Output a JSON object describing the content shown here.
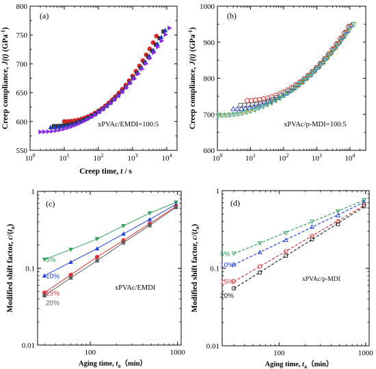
{
  "chart_data": [
    {
      "type": "scatter",
      "panel_label": "(a)",
      "xlabel_pre": "Creep time, ",
      "xlabel_var": "t",
      "xlabel_post": " / s",
      "ylabel_pre": "Creep compliance, ",
      "ylabel_var": "J(t)",
      "ylabel_post": " (GPa",
      "ylabel_exp": "-1",
      "ylabel_close": ")",
      "annotation": "xPVAc/EMDI=100:5",
      "x_scale": "log",
      "xlim": [
        1,
        20000
      ],
      "ylim": [
        550,
        800
      ],
      "y_ticks": [
        "550",
        "600",
        "650",
        "700",
        "750",
        "800"
      ],
      "x_ticks": [
        {
          "base": "10",
          "exp": "0"
        },
        {
          "base": "10",
          "exp": "1"
        },
        {
          "base": "10",
          "exp": "2"
        },
        {
          "base": "10",
          "exp": "3"
        },
        {
          "base": "10",
          "exp": "4"
        }
      ],
      "series": [
        {
          "marker": "circle",
          "color": "#d62728",
          "fill": true,
          "x_range": [
            10,
            5000
          ],
          "y_range": [
            600,
            748
          ],
          "n": 28
        },
        {
          "marker": "square",
          "color": "#333333",
          "fill": true,
          "x_range": [
            5,
            8000
          ],
          "y_range": [
            592,
            756
          ],
          "n": 30
        },
        {
          "marker": "triangle-up",
          "color": "#1f3fbf",
          "fill": true,
          "x_range": [
            4,
            9000
          ],
          "y_range": [
            590,
            758
          ],
          "n": 30
        },
        {
          "marker": "triangle-right",
          "color": "#8a2be2",
          "fill": true,
          "x_range": [
            2,
            12000
          ],
          "y_range": [
            582,
            762
          ],
          "n": 34
        }
      ]
    },
    {
      "type": "scatter",
      "panel_label": "(b)",
      "ylabel_pre": "Creep compliance, ",
      "ylabel_var": "J(t)",
      "ylabel_post": " (GPa",
      "ylabel_exp": "-1",
      "ylabel_close": ")",
      "annotation": "xPVAc/p-MDI=100:5",
      "x_scale": "log",
      "xlim": [
        1,
        30000
      ],
      "ylim": [
        600,
        1000
      ],
      "y_ticks": [
        "600",
        "700",
        "800",
        "900",
        "1000"
      ],
      "x_ticks": [
        {
          "base": "10",
          "exp": "0"
        },
        {
          "base": "10",
          "exp": "1"
        },
        {
          "base": "10",
          "exp": "2"
        },
        {
          "base": "10",
          "exp": "3"
        },
        {
          "base": "10",
          "exp": "4"
        }
      ],
      "series": [
        {
          "marker": "circle",
          "color": "#d62728",
          "fill": false,
          "x_range": [
            8,
            9000
          ],
          "y_range": [
            738,
            942
          ],
          "n": 26
        },
        {
          "marker": "square",
          "color": "#555555",
          "fill": false,
          "x_range": [
            5,
            10000
          ],
          "y_range": [
            725,
            945
          ],
          "n": 28
        },
        {
          "marker": "triangle-up",
          "color": "#1f3fbf",
          "fill": false,
          "x_range": [
            3,
            11000
          ],
          "y_range": [
            715,
            948
          ],
          "n": 30
        },
        {
          "marker": "triangle-left",
          "color": "#d08000",
          "fill": false,
          "x_range": [
            1.1,
            12000
          ],
          "y_range": [
            698,
            950
          ],
          "n": 32
        },
        {
          "marker": "triangle-down",
          "color": "#20c0c0",
          "fill": false,
          "x_range": [
            1.05,
            13000
          ],
          "y_range": [
            696,
            950
          ],
          "n": 34
        }
      ]
    },
    {
      "type": "line",
      "panel_label": "(c)",
      "xlabel_pre": "Aging time, ",
      "xlabel_var": "t",
      "xlabel_sub": "a",
      "xlabel_post": "（min）",
      "ylabel_pre": "Modified shift factor, ",
      "ylabel_var": "c",
      "ylabel_mid": "/(",
      "ylabel_var2": "t",
      "ylabel_sub": "a",
      "ylabel_close": ")",
      "annotation": "xPVAc/EMDI",
      "x_scale": "log",
      "y_scale": "log",
      "xlim": [
        25,
        1100
      ],
      "ylim": [
        0.01,
        1
      ],
      "x_ticks": [
        "100",
        "1000"
      ],
      "y_ticks": [
        "0.01",
        "0.1",
        "1"
      ],
      "series": [
        {
          "name": "5%",
          "color": "#2ca05a",
          "marker": "triangle-down",
          "x": [
            30,
            60,
            120,
            240,
            480,
            960
          ],
          "y": [
            0.13,
            0.175,
            0.24,
            0.355,
            0.52,
            0.72
          ]
        },
        {
          "name": "10%",
          "color": "#1f3fe0",
          "marker": "triangle-up",
          "x": [
            30,
            60,
            120,
            240,
            480,
            960
          ],
          "y": [
            0.08,
            0.12,
            0.18,
            0.28,
            0.43,
            0.68
          ]
        },
        {
          "name": "15%",
          "color": "#e03030",
          "marker": "circle",
          "x": [
            30,
            60,
            120,
            240,
            480,
            960
          ],
          "y": [
            0.048,
            0.082,
            0.14,
            0.23,
            0.38,
            0.64
          ]
        },
        {
          "name": "20%",
          "color": "#606060",
          "marker": "square",
          "x": [
            30,
            60,
            120,
            240,
            480,
            960
          ],
          "y": [
            0.044,
            0.075,
            0.125,
            0.215,
            0.36,
            0.62
          ]
        }
      ]
    },
    {
      "type": "line",
      "panel_label": "(d)",
      "xlabel_pre": "Aging time, ",
      "xlabel_var": "t",
      "xlabel_sub": "a",
      "xlabel_post": "（min）",
      "ylabel_pre": "Modified shift factor, ",
      "ylabel_var": "c",
      "ylabel_mid": "/(",
      "ylabel_var2": "t",
      "ylabel_sub": "a",
      "ylabel_close": ")",
      "annotation": "xPVAc/p-MDI",
      "x_scale": "log",
      "y_scale": "log",
      "xlim": [
        22,
        1100
      ],
      "ylim": [
        0.01,
        1
      ],
      "x_ticks": [
        "100",
        "1000"
      ],
      "y_ticks": [
        "0.01",
        "0.1",
        "1"
      ],
      "series": [
        {
          "name": "5%",
          "color": "#2ca05a",
          "marker": "triangle-down",
          "x": [
            30,
            60,
            120,
            240,
            480,
            960
          ],
          "y": [
            0.155,
            0.21,
            0.285,
            0.4,
            0.54,
            0.76
          ]
        },
        {
          "name": "10%",
          "color": "#1f3fe0",
          "marker": "triangle-up",
          "x": [
            30,
            60,
            120,
            240,
            480,
            960
          ],
          "y": [
            0.112,
            0.16,
            0.23,
            0.34,
            0.48,
            0.72
          ]
        },
        {
          "name": "15%",
          "color": "#e03030",
          "marker": "circle",
          "x": [
            30,
            60,
            120,
            240,
            480,
            960
          ],
          "y": [
            0.068,
            0.105,
            0.165,
            0.26,
            0.4,
            0.66
          ]
        },
        {
          "name": "20%",
          "color": "#202020",
          "marker": "square",
          "x": [
            30,
            60,
            120,
            240,
            480,
            960
          ],
          "y": [
            0.055,
            0.088,
            0.145,
            0.235,
            0.37,
            0.63
          ]
        }
      ]
    }
  ]
}
